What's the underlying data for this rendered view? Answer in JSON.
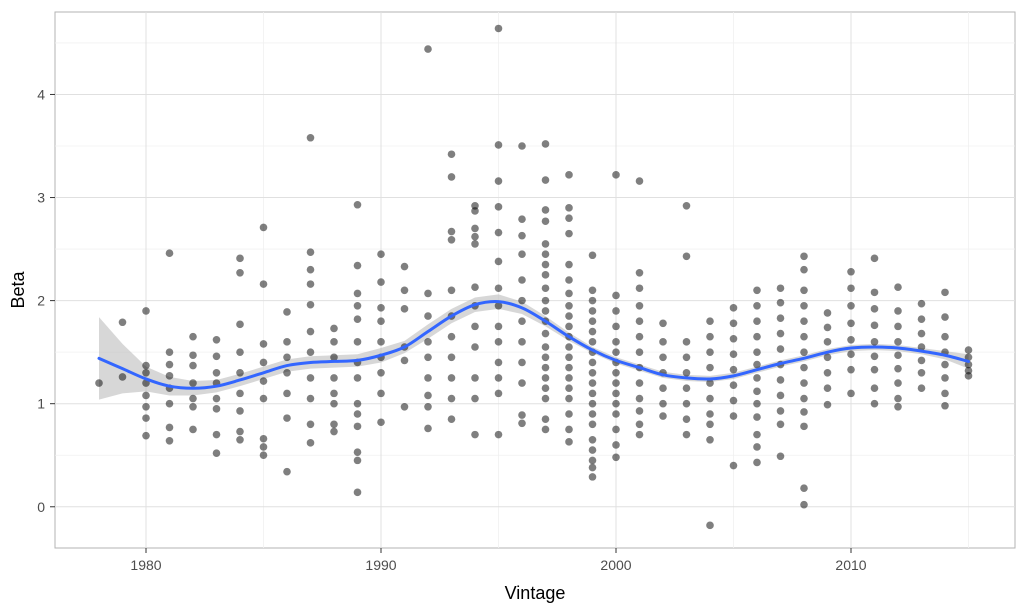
{
  "chart_data": {
    "type": "scatter",
    "title": "",
    "xlabel": "Vintage",
    "ylabel": "Beta",
    "xlim": [
      1977.6,
      1978.0
    ],
    "ylim": [
      -0.4,
      4.8
    ],
    "x_ticks": [
      1980,
      1990,
      2000,
      2010
    ],
    "y_ticks": [
      0,
      1,
      2,
      3,
      4
    ],
    "x_tick_labels": [
      "1980",
      "1990",
      "2000",
      "2010"
    ],
    "y_tick_labels": [
      "0",
      "1",
      "2",
      "3",
      "4"
    ],
    "grid": true,
    "legend": "none",
    "point_color": "#000000",
    "point_opacity": 0.5,
    "smooth_color": "#3366FF",
    "ribbon_color": "#BDBDBD",
    "points": [
      [
        1978,
        1.2
      ],
      [
        1979,
        1.26
      ],
      [
        1979,
        1.79
      ],
      [
        1980,
        1.9
      ],
      [
        1980,
        1.37
      ],
      [
        1980,
        1.3
      ],
      [
        1980,
        1.2
      ],
      [
        1980,
        1.08
      ],
      [
        1980,
        0.97
      ],
      [
        1980,
        0.86
      ],
      [
        1980,
        0.69
      ],
      [
        1981,
        2.46
      ],
      [
        1981,
        1.5
      ],
      [
        1981,
        1.38
      ],
      [
        1981,
        1.27
      ],
      [
        1981,
        1.15
      ],
      [
        1981,
        1.0
      ],
      [
        1981,
        0.77
      ],
      [
        1981,
        0.64
      ],
      [
        1982,
        1.65
      ],
      [
        1982,
        1.47
      ],
      [
        1982,
        1.37
      ],
      [
        1982,
        1.2
      ],
      [
        1982,
        1.05
      ],
      [
        1982,
        0.97
      ],
      [
        1982,
        0.75
      ],
      [
        1983,
        1.62
      ],
      [
        1983,
        1.46
      ],
      [
        1983,
        1.3
      ],
      [
        1983,
        1.2
      ],
      [
        1983,
        1.05
      ],
      [
        1983,
        0.95
      ],
      [
        1983,
        0.7
      ],
      [
        1983,
        0.52
      ],
      [
        1984,
        2.41
      ],
      [
        1984,
        2.27
      ],
      [
        1984,
        1.77
      ],
      [
        1984,
        1.5
      ],
      [
        1984,
        1.3
      ],
      [
        1984,
        1.1
      ],
      [
        1984,
        0.93
      ],
      [
        1984,
        0.73
      ],
      [
        1984,
        0.65
      ],
      [
        1985,
        2.71
      ],
      [
        1985,
        2.16
      ],
      [
        1985,
        1.58
      ],
      [
        1985,
        1.4
      ],
      [
        1985,
        1.22
      ],
      [
        1985,
        1.05
      ],
      [
        1985,
        0.66
      ],
      [
        1985,
        0.58
      ],
      [
        1985,
        0.5
      ],
      [
        1986,
        1.89
      ],
      [
        1986,
        1.6
      ],
      [
        1986,
        1.45
      ],
      [
        1986,
        1.3
      ],
      [
        1986,
        1.1
      ],
      [
        1986,
        0.86
      ],
      [
        1986,
        0.34
      ],
      [
        1987,
        3.58
      ],
      [
        1987,
        2.47
      ],
      [
        1987,
        2.3
      ],
      [
        1987,
        2.16
      ],
      [
        1987,
        1.96
      ],
      [
        1987,
        1.7
      ],
      [
        1987,
        1.5
      ],
      [
        1987,
        1.25
      ],
      [
        1987,
        1.05
      ],
      [
        1987,
        0.8
      ],
      [
        1987,
        0.62
      ],
      [
        1988,
        1.73
      ],
      [
        1988,
        1.6
      ],
      [
        1988,
        1.45
      ],
      [
        1988,
        1.25
      ],
      [
        1988,
        1.1
      ],
      [
        1988,
        1.0
      ],
      [
        1988,
        0.8
      ],
      [
        1988,
        0.73
      ],
      [
        1989,
        2.93
      ],
      [
        1989,
        2.34
      ],
      [
        1989,
        2.07
      ],
      [
        1989,
        1.95
      ],
      [
        1989,
        1.82
      ],
      [
        1989,
        1.6
      ],
      [
        1989,
        1.4
      ],
      [
        1989,
        1.25
      ],
      [
        1989,
        1.0
      ],
      [
        1989,
        0.9
      ],
      [
        1989,
        0.78
      ],
      [
        1989,
        0.53
      ],
      [
        1989,
        0.45
      ],
      [
        1989,
        0.14
      ],
      [
        1990,
        2.45
      ],
      [
        1990,
        2.18
      ],
      [
        1990,
        1.93
      ],
      [
        1990,
        1.8
      ],
      [
        1990,
        1.6
      ],
      [
        1990,
        1.45
      ],
      [
        1990,
        1.3
      ],
      [
        1990,
        1.1
      ],
      [
        1990,
        0.82
      ],
      [
        1991,
        2.33
      ],
      [
        1991,
        2.1
      ],
      [
        1991,
        1.92
      ],
      [
        1991,
        1.55
      ],
      [
        1991,
        1.42
      ],
      [
        1991,
        0.97
      ],
      [
        1992,
        4.44
      ],
      [
        1992,
        2.07
      ],
      [
        1992,
        1.85
      ],
      [
        1992,
        1.6
      ],
      [
        1992,
        1.45
      ],
      [
        1992,
        1.25
      ],
      [
        1992,
        1.08
      ],
      [
        1992,
        0.97
      ],
      [
        1992,
        0.76
      ],
      [
        1993,
        3.42
      ],
      [
        1993,
        3.2
      ],
      [
        1993,
        2.67
      ],
      [
        1993,
        2.59
      ],
      [
        1993,
        2.1
      ],
      [
        1993,
        1.85
      ],
      [
        1993,
        1.65
      ],
      [
        1993,
        1.45
      ],
      [
        1993,
        1.25
      ],
      [
        1993,
        1.05
      ],
      [
        1993,
        0.85
      ],
      [
        1994,
        2.92
      ],
      [
        1994,
        2.87
      ],
      [
        1994,
        2.7
      ],
      [
        1994,
        2.62
      ],
      [
        1994,
        2.55
      ],
      [
        1994,
        2.13
      ],
      [
        1994,
        1.95
      ],
      [
        1994,
        1.75
      ],
      [
        1994,
        1.55
      ],
      [
        1994,
        1.25
      ],
      [
        1994,
        1.05
      ],
      [
        1994,
        0.7
      ],
      [
        1995,
        4.64
      ],
      [
        1995,
        3.51
      ],
      [
        1995,
        3.16
      ],
      [
        1995,
        2.91
      ],
      [
        1995,
        2.66
      ],
      [
        1995,
        2.38
      ],
      [
        1995,
        2.12
      ],
      [
        1995,
        1.95
      ],
      [
        1995,
        1.75
      ],
      [
        1995,
        1.6
      ],
      [
        1995,
        1.4
      ],
      [
        1995,
        1.25
      ],
      [
        1995,
        1.1
      ],
      [
        1995,
        0.7
      ],
      [
        1996,
        3.5
      ],
      [
        1996,
        2.79
      ],
      [
        1996,
        2.63
      ],
      [
        1996,
        2.45
      ],
      [
        1996,
        2.2
      ],
      [
        1996,
        2.0
      ],
      [
        1996,
        1.8
      ],
      [
        1996,
        1.6
      ],
      [
        1996,
        1.4
      ],
      [
        1996,
        1.2
      ],
      [
        1996,
        0.89
      ],
      [
        1996,
        0.81
      ],
      [
        1997,
        3.52
      ],
      [
        1997,
        3.17
      ],
      [
        1997,
        2.88
      ],
      [
        1997,
        2.77
      ],
      [
        1997,
        2.55
      ],
      [
        1997,
        2.45
      ],
      [
        1997,
        2.35
      ],
      [
        1997,
        2.25
      ],
      [
        1997,
        2.12
      ],
      [
        1997,
        2.0
      ],
      [
        1997,
        1.9
      ],
      [
        1997,
        1.8
      ],
      [
        1997,
        1.68
      ],
      [
        1997,
        1.55
      ],
      [
        1997,
        1.45
      ],
      [
        1997,
        1.35
      ],
      [
        1997,
        1.25
      ],
      [
        1997,
        1.15
      ],
      [
        1997,
        1.05
      ],
      [
        1997,
        0.85
      ],
      [
        1997,
        0.75
      ],
      [
        1998,
        3.22
      ],
      [
        1998,
        2.9
      ],
      [
        1998,
        2.8
      ],
      [
        1998,
        2.65
      ],
      [
        1998,
        2.35
      ],
      [
        1998,
        2.2
      ],
      [
        1998,
        2.07
      ],
      [
        1998,
        1.95
      ],
      [
        1998,
        1.85
      ],
      [
        1998,
        1.75
      ],
      [
        1998,
        1.65
      ],
      [
        1998,
        1.55
      ],
      [
        1998,
        1.45
      ],
      [
        1998,
        1.35
      ],
      [
        1998,
        1.25
      ],
      [
        1998,
        1.15
      ],
      [
        1998,
        1.05
      ],
      [
        1998,
        0.9
      ],
      [
        1998,
        0.75
      ],
      [
        1998,
        0.63
      ],
      [
        1999,
        2.44
      ],
      [
        1999,
        2.1
      ],
      [
        1999,
        2.0
      ],
      [
        1999,
        1.9
      ],
      [
        1999,
        1.8
      ],
      [
        1999,
        1.7
      ],
      [
        1999,
        1.6
      ],
      [
        1999,
        1.5
      ],
      [
        1999,
        1.4
      ],
      [
        1999,
        1.3
      ],
      [
        1999,
        1.2
      ],
      [
        1999,
        1.1
      ],
      [
        1999,
        1.0
      ],
      [
        1999,
        0.9
      ],
      [
        1999,
        0.8
      ],
      [
        1999,
        0.65
      ],
      [
        1999,
        0.55
      ],
      [
        1999,
        0.45
      ],
      [
        1999,
        0.38
      ],
      [
        1999,
        0.29
      ],
      [
        2000,
        3.22
      ],
      [
        2000,
        2.05
      ],
      [
        2000,
        1.9
      ],
      [
        2000,
        1.75
      ],
      [
        2000,
        1.6
      ],
      [
        2000,
        1.5
      ],
      [
        2000,
        1.4
      ],
      [
        2000,
        1.3
      ],
      [
        2000,
        1.2
      ],
      [
        2000,
        1.1
      ],
      [
        2000,
        1.0
      ],
      [
        2000,
        0.9
      ],
      [
        2000,
        0.75
      ],
      [
        2000,
        0.6
      ],
      [
        2000,
        0.48
      ],
      [
        2001,
        3.16
      ],
      [
        2001,
        2.27
      ],
      [
        2001,
        2.12
      ],
      [
        2001,
        1.95
      ],
      [
        2001,
        1.8
      ],
      [
        2001,
        1.65
      ],
      [
        2001,
        1.5
      ],
      [
        2001,
        1.35
      ],
      [
        2001,
        1.2
      ],
      [
        2001,
        1.05
      ],
      [
        2001,
        0.93
      ],
      [
        2001,
        0.8
      ],
      [
        2001,
        0.7
      ],
      [
        2002,
        1.78
      ],
      [
        2002,
        1.6
      ],
      [
        2002,
        1.45
      ],
      [
        2002,
        1.3
      ],
      [
        2002,
        1.15
      ],
      [
        2002,
        1.0
      ],
      [
        2002,
        0.88
      ],
      [
        2003,
        2.92
      ],
      [
        2003,
        2.43
      ],
      [
        2003,
        1.6
      ],
      [
        2003,
        1.45
      ],
      [
        2003,
        1.3
      ],
      [
        2003,
        1.15
      ],
      [
        2003,
        1.0
      ],
      [
        2003,
        0.85
      ],
      [
        2003,
        0.7
      ],
      [
        2004,
        1.8
      ],
      [
        2004,
        1.65
      ],
      [
        2004,
        1.5
      ],
      [
        2004,
        1.35
      ],
      [
        2004,
        1.2
      ],
      [
        2004,
        1.05
      ],
      [
        2004,
        0.9
      ],
      [
        2004,
        0.8
      ],
      [
        2004,
        0.65
      ],
      [
        2004,
        -0.18
      ],
      [
        2005,
        1.93
      ],
      [
        2005,
        1.78
      ],
      [
        2005,
        1.63
      ],
      [
        2005,
        1.48
      ],
      [
        2005,
        1.33
      ],
      [
        2005,
        1.18
      ],
      [
        2005,
        1.03
      ],
      [
        2005,
        0.88
      ],
      [
        2005,
        0.4
      ],
      [
        2006,
        2.1
      ],
      [
        2006,
        1.95
      ],
      [
        2006,
        1.8
      ],
      [
        2006,
        1.65
      ],
      [
        2006,
        1.5
      ],
      [
        2006,
        1.38
      ],
      [
        2006,
        1.25
      ],
      [
        2006,
        1.12
      ],
      [
        2006,
        1.0
      ],
      [
        2006,
        0.87
      ],
      [
        2006,
        0.7
      ],
      [
        2006,
        0.58
      ],
      [
        2006,
        0.43
      ],
      [
        2007,
        2.12
      ],
      [
        2007,
        1.98
      ],
      [
        2007,
        1.83
      ],
      [
        2007,
        1.68
      ],
      [
        2007,
        1.53
      ],
      [
        2007,
        1.38
      ],
      [
        2007,
        1.23
      ],
      [
        2007,
        1.08
      ],
      [
        2007,
        0.93
      ],
      [
        2007,
        0.8
      ],
      [
        2007,
        0.49
      ],
      [
        2008,
        2.43
      ],
      [
        2008,
        2.3
      ],
      [
        2008,
        2.1
      ],
      [
        2008,
        1.95
      ],
      [
        2008,
        1.8
      ],
      [
        2008,
        1.65
      ],
      [
        2008,
        1.5
      ],
      [
        2008,
        1.35
      ],
      [
        2008,
        1.2
      ],
      [
        2008,
        1.05
      ],
      [
        2008,
        0.92
      ],
      [
        2008,
        0.78
      ],
      [
        2008,
        0.18
      ],
      [
        2008,
        0.02
      ],
      [
        2009,
        1.88
      ],
      [
        2009,
        1.74
      ],
      [
        2009,
        1.6
      ],
      [
        2009,
        1.45
      ],
      [
        2009,
        1.3
      ],
      [
        2009,
        1.15
      ],
      [
        2009,
        0.99
      ],
      [
        2010,
        2.28
      ],
      [
        2010,
        2.12
      ],
      [
        2010,
        1.95
      ],
      [
        2010,
        1.78
      ],
      [
        2010,
        1.62
      ],
      [
        2010,
        1.48
      ],
      [
        2010,
        1.33
      ],
      [
        2010,
        1.1
      ],
      [
        2011,
        2.41
      ],
      [
        2011,
        2.08
      ],
      [
        2011,
        1.92
      ],
      [
        2011,
        1.76
      ],
      [
        2011,
        1.6
      ],
      [
        2011,
        1.46
      ],
      [
        2011,
        1.33
      ],
      [
        2011,
        1.15
      ],
      [
        2011,
        1.0
      ],
      [
        2012,
        2.13
      ],
      [
        2012,
        1.9
      ],
      [
        2012,
        1.75
      ],
      [
        2012,
        1.6
      ],
      [
        2012,
        1.47
      ],
      [
        2012,
        1.34
      ],
      [
        2012,
        1.2
      ],
      [
        2012,
        1.05
      ],
      [
        2012,
        0.97
      ],
      [
        2013,
        1.97
      ],
      [
        2013,
        1.82
      ],
      [
        2013,
        1.68
      ],
      [
        2013,
        1.55
      ],
      [
        2013,
        1.42
      ],
      [
        2013,
        1.3
      ],
      [
        2013,
        1.15
      ],
      [
        2014,
        2.08
      ],
      [
        2014,
        1.84
      ],
      [
        2014,
        1.65
      ],
      [
        2014,
        1.5
      ],
      [
        2014,
        1.38
      ],
      [
        2014,
        1.25
      ],
      [
        2014,
        1.1
      ],
      [
        2014,
        0.98
      ],
      [
        2015,
        1.52
      ],
      [
        2015,
        1.45
      ],
      [
        2015,
        1.38
      ],
      [
        2015,
        1.32
      ],
      [
        2015,
        1.27
      ]
    ],
    "smooth": {
      "x": [
        1978,
        1979,
        1980,
        1981,
        1982,
        1983,
        1984,
        1985,
        1986,
        1987,
        1988,
        1989,
        1990,
        1991,
        1992,
        1993,
        1994,
        1995,
        1996,
        1997,
        1998,
        1999,
        2000,
        2001,
        2002,
        2003,
        2004,
        2005,
        2006,
        2007,
        2008,
        2009,
        2010,
        2011,
        2012,
        2013,
        2014,
        2015
      ],
      "y": [
        1.44,
        1.34,
        1.24,
        1.17,
        1.15,
        1.17,
        1.23,
        1.3,
        1.37,
        1.4,
        1.41,
        1.42,
        1.47,
        1.55,
        1.7,
        1.85,
        1.96,
        1.99,
        1.93,
        1.8,
        1.65,
        1.52,
        1.42,
        1.35,
        1.28,
        1.25,
        1.24,
        1.27,
        1.33,
        1.39,
        1.44,
        1.5,
        1.54,
        1.55,
        1.54,
        1.51,
        1.47,
        1.41
      ],
      "lower": [
        1.04,
        1.1,
        1.12,
        1.08,
        1.08,
        1.11,
        1.17,
        1.24,
        1.31,
        1.34,
        1.35,
        1.36,
        1.4,
        1.49,
        1.63,
        1.78,
        1.89,
        1.92,
        1.87,
        1.75,
        1.61,
        1.49,
        1.39,
        1.32,
        1.25,
        1.22,
        1.21,
        1.24,
        1.3,
        1.36,
        1.41,
        1.47,
        1.51,
        1.52,
        1.51,
        1.48,
        1.43,
        1.34
      ],
      "upper": [
        1.84,
        1.58,
        1.36,
        1.26,
        1.22,
        1.23,
        1.29,
        1.36,
        1.43,
        1.46,
        1.47,
        1.48,
        1.54,
        1.61,
        1.77,
        1.92,
        2.03,
        2.06,
        1.99,
        1.85,
        1.69,
        1.55,
        1.45,
        1.38,
        1.31,
        1.28,
        1.27,
        1.3,
        1.36,
        1.42,
        1.47,
        1.53,
        1.57,
        1.58,
        1.57,
        1.54,
        1.51,
        1.48
      ]
    }
  }
}
